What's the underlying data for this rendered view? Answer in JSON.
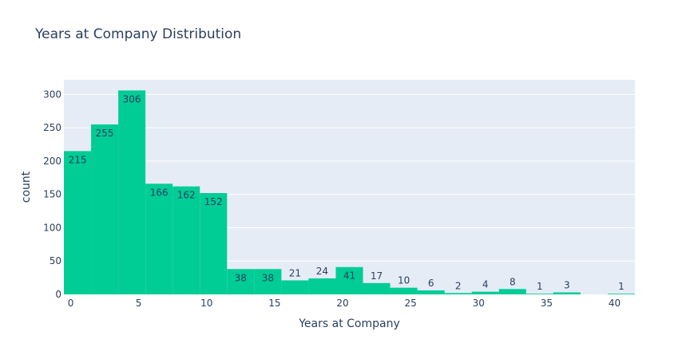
{
  "chart_data": {
    "type": "bar",
    "title": "Years at Company Distribution",
    "xlabel": "Years at Company",
    "ylabel": "count",
    "bin_width": 2,
    "bin_starts": [
      0,
      2,
      4,
      6,
      8,
      10,
      12,
      14,
      16,
      18,
      20,
      22,
      24,
      26,
      28,
      30,
      32,
      34,
      36,
      38,
      40
    ],
    "values": [
      215,
      255,
      306,
      166,
      162,
      152,
      38,
      38,
      21,
      24,
      41,
      17,
      10,
      6,
      2,
      4,
      8,
      1,
      3,
      0,
      1
    ],
    "data_labels": [
      "215",
      "255",
      "306",
      "166",
      "162",
      "152",
      "38",
      "38",
      "21",
      "24",
      "41",
      "17",
      "10",
      "6",
      "2",
      "4",
      "8",
      "1",
      "3",
      "",
      "1"
    ],
    "xlim": [
      -0.5,
      41.5
    ],
    "ylim": [
      0,
      322
    ],
    "x_ticks": [
      0,
      5,
      10,
      15,
      20,
      25,
      30,
      35,
      40
    ],
    "x_tick_labels": [
      "0",
      "5",
      "10",
      "15",
      "20",
      "25",
      "30",
      "35",
      "40"
    ],
    "y_ticks": [
      0,
      50,
      100,
      150,
      200,
      250,
      300
    ],
    "y_tick_labels": [
      "0",
      "50",
      "100",
      "150",
      "200",
      "250",
      "300"
    ],
    "bar_color": "#00cc96",
    "plot_bg": "#e5ecf6",
    "grid": true
  }
}
